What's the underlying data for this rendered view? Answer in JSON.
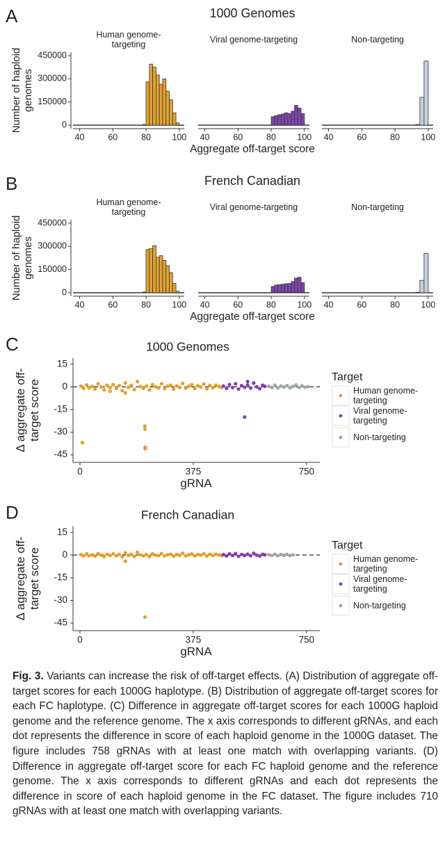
{
  "chart_data": [
    {
      "type": "histogram",
      "label": "A",
      "title": "1000 Genomes",
      "xlabel": "Aggregate off-target score",
      "ylabel": "Number of haploid genomes",
      "xlim": [
        36,
        103
      ],
      "xticks": [
        40,
        60,
        80,
        100
      ],
      "ylim": [
        -22500,
        472500
      ],
      "yticks": [
        0,
        150000,
        300000,
        450000
      ],
      "facets": [
        {
          "title": "Human genome-targeting",
          "color": "#e3a333",
          "bins": [
            78,
            80,
            82,
            84,
            86,
            88,
            90,
            92,
            94,
            96,
            98,
            100
          ],
          "counts": [
            5000,
            280000,
            395000,
            375000,
            325000,
            265000,
            300000,
            220000,
            165000,
            80000,
            15000
          ]
        },
        {
          "title": "Viral genome-targeting",
          "color": "#7d47aa",
          "bins": [
            78,
            80,
            82,
            84,
            86,
            88,
            90,
            92,
            94,
            96,
            98,
            100
          ],
          "counts": [
            0,
            55000,
            62000,
            68000,
            72000,
            80000,
            75000,
            90000,
            128000,
            110000,
            75000
          ]
        },
        {
          "title": "Non-targeting",
          "color": "#c9d1de",
          "bins": [
            92.5,
            95,
            97.5,
            100
          ],
          "counts": [
            5000,
            180000,
            415000
          ]
        }
      ]
    },
    {
      "type": "histogram",
      "label": "B",
      "title": "French Canadian",
      "xlabel": "Aggregate off-target score",
      "ylabel": "Number of haploid genomes",
      "xlim": [
        36,
        103
      ],
      "xticks": [
        40,
        60,
        80,
        100
      ],
      "ylim": [
        -22500,
        472500
      ],
      "yticks": [
        0,
        150000,
        300000,
        450000
      ],
      "facets": [
        {
          "title": "Human genome-targeting",
          "color": "#e3a333",
          "bins": [
            78,
            80,
            82,
            84,
            86,
            88,
            90,
            92,
            94,
            96,
            98,
            100
          ],
          "counts": [
            5000,
            280000,
            285000,
            305000,
            230000,
            240000,
            210000,
            175000,
            130000,
            60000,
            10000
          ]
        },
        {
          "title": "Viral genome-targeting",
          "color": "#7d47aa",
          "bins": [
            78,
            80,
            82,
            84,
            86,
            88,
            90,
            92,
            94,
            96,
            98,
            100
          ],
          "counts": [
            0,
            40000,
            50000,
            52000,
            55000,
            58000,
            60000,
            72000,
            95000,
            100000,
            65000
          ]
        },
        {
          "title": "Non-targeting",
          "color": "#c9d1de",
          "bins": [
            92.5,
            95,
            97.5,
            100
          ],
          "counts": [
            3000,
            80000,
            255000
          ]
        }
      ]
    },
    {
      "type": "scatter",
      "label": "C",
      "title": "1000 Genomes",
      "xlabel": "gRNA",
      "ylabel": "Δ aggregate off-target score",
      "xlim": [
        -23,
        794
      ],
      "xticks": [
        0,
        375,
        750
      ],
      "ylim": [
        -50,
        19
      ],
      "yticks": [
        -45,
        -30,
        -15,
        0,
        15
      ],
      "hline": 0,
      "legend_title": "Target",
      "legend": "right",
      "series": [
        {
          "name": "Human genome-targeting",
          "color": "#e39f2c",
          "x": [
            3,
            12,
            22,
            30,
            41,
            50,
            60,
            70,
            80,
            90,
            100,
            110,
            120,
            130,
            140,
            150,
            160,
            170,
            180,
            190,
            200,
            210,
            220,
            230,
            240,
            250,
            260,
            270,
            280,
            290,
            300,
            310,
            320,
            330,
            340,
            350,
            360,
            370,
            380,
            390,
            400,
            410,
            420,
            430,
            440,
            450,
            460,
            468,
            8,
            215,
            215,
            216,
            216,
            150,
            100
          ],
          "values": [
            0.5,
            -1,
            1.2,
            -0.8,
            0.3,
            -1.5,
            2,
            0,
            -2,
            1,
            -0.5,
            1.5,
            -1,
            0.8,
            -2.5,
            2.5,
            -0.3,
            1,
            -1.8,
            3.5,
            0.2,
            -1,
            0.5,
            -2,
            1.5,
            0,
            -0.7,
            2,
            -1.2,
            0.4,
            1,
            -1.5,
            0.6,
            -0.4,
            2.2,
            -0.9,
            0.3,
            1.4,
            -1.1,
            0.7,
            -0.2,
            1.8,
            -1.3,
            0.9,
            -0.6,
            1.1,
            0.2,
            -0.5,
            -37,
            -26,
            -28,
            -40,
            -41,
            -4,
            -3
          ]
        },
        {
          "name": "Viral genome-targeting",
          "color": "#7e3fb0",
          "x": [
            475,
            485,
            495,
            505,
            515,
            525,
            535,
            545,
            555,
            565,
            575,
            585,
            595,
            605,
            612,
            545,
            555
          ],
          "values": [
            0.5,
            -1,
            1.5,
            -0.5,
            2,
            -1.5,
            0.8,
            -0.3,
            1.2,
            -0.8,
            2.5,
            0,
            -1.2,
            1,
            0.3,
            -20,
            3.5
          ]
        },
        {
          "name": "Non-targeting",
          "color": "#9ea6a6",
          "x": [
            625,
            635,
            645,
            655,
            665,
            675,
            685,
            695,
            705,
            715,
            725,
            735,
            745,
            755
          ],
          "values": [
            0.3,
            -0.5,
            1,
            -0.8,
            0.5,
            -0.2,
            0.8,
            -0.6,
            0.2,
            1.2,
            -0.4,
            0.6,
            -0.3,
            0.1
          ]
        }
      ]
    },
    {
      "type": "scatter",
      "label": "D",
      "title": "French Canadian",
      "xlabel": "gRNA",
      "ylabel": "Δ aggregate off-target score",
      "xlim": [
        -23,
        794
      ],
      "xticks": [
        0,
        375,
        750
      ],
      "ylim": [
        -50,
        19
      ],
      "yticks": [
        -45,
        -30,
        -15,
        0,
        15
      ],
      "hline": 0,
      "legend_title": "Target",
      "legend": "right",
      "series": [
        {
          "name": "Human genome-targeting",
          "color": "#e39f2c",
          "x": [
            3,
            12,
            22,
            30,
            41,
            50,
            60,
            70,
            80,
            90,
            100,
            110,
            120,
            130,
            140,
            150,
            160,
            170,
            180,
            190,
            200,
            210,
            220,
            230,
            240,
            250,
            260,
            270,
            280,
            290,
            300,
            310,
            320,
            330,
            340,
            350,
            360,
            370,
            380,
            390,
            400,
            410,
            420,
            430,
            440,
            450,
            460,
            468,
            150,
            215
          ],
          "values": [
            0.3,
            -0.5,
            0.8,
            -0.4,
            0.2,
            -0.8,
            1,
            0,
            -1,
            0.5,
            -0.3,
            0.8,
            -0.5,
            0.4,
            -1.2,
            1.5,
            -0.2,
            0.5,
            -0.9,
            1.8,
            0.1,
            -0.5,
            0.3,
            -1,
            0.8,
            0,
            -0.4,
            1,
            -0.6,
            0.2,
            0.5,
            -0.8,
            0.3,
            -0.2,
            1.2,
            -0.5,
            0.2,
            0.7,
            -0.6,
            0.4,
            -0.1,
            0.9,
            -0.7,
            0.5,
            -0.3,
            0.6,
            0.1,
            -0.3,
            -4,
            -41
          ]
        },
        {
          "name": "Viral genome-targeting",
          "color": "#7e3fb0",
          "x": [
            475,
            485,
            495,
            505,
            515,
            525,
            535,
            545,
            555,
            565,
            575,
            585,
            595,
            605,
            612
          ],
          "values": [
            0.3,
            -0.6,
            0.8,
            -0.3,
            1,
            -0.8,
            0.4,
            -0.2,
            0.6,
            -0.4,
            1.2,
            0,
            -0.6,
            0.5,
            0.2
          ]
        },
        {
          "name": "Non-targeting",
          "color": "#9ea6a6",
          "x": [
            625,
            635,
            645,
            655,
            665,
            675,
            685,
            695,
            705
          ],
          "values": [
            0.2,
            -0.3,
            0.5,
            -0.4,
            0.3,
            -0.1,
            0.4,
            -0.3,
            0.1
          ]
        }
      ]
    }
  ],
  "caption": {
    "label": "Fig. 3.",
    "text": "Variants can increase the risk of off-target effects. (A) Distribution of aggregate off-target scores for each 1000G haplotype. (B) Distribution of aggregate off-target scores for each FC haplotype. (C) Difference in aggregate off-target scores for each 1000G haploid genome and the reference genome. The x axis corresponds to different gRNAs, and each dot represents the difference in score of each haploid genome in the 1000G dataset. The figure includes 758 gRNAs with at least one match with overlapping variants. (D) Difference in aggregate off-target score for each FC haploid genome and the reference genome. The x axis corresponds to different gRNAs and each dot represents the difference in score of each haploid genome in the FC dataset. The figure includes 710 gRNAs with at least one match with overlapping variants."
  }
}
